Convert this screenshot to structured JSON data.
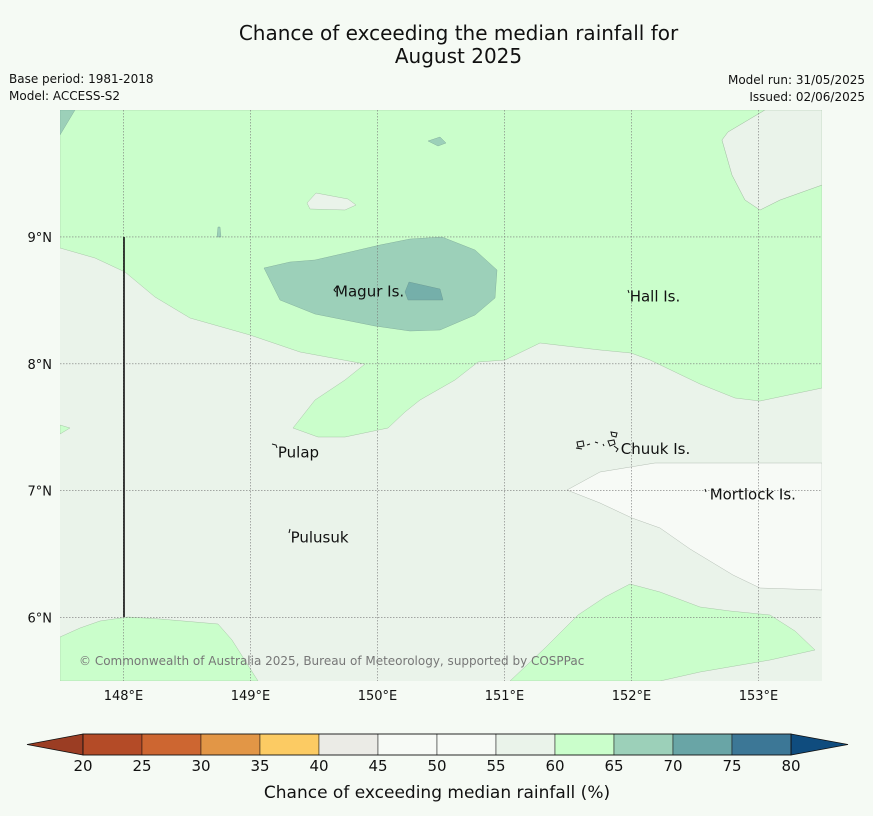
{
  "title": {
    "line1": "Chance of exceeding the median rainfall for",
    "line2": "August 2025"
  },
  "meta": {
    "base_period": "Base period: 1981-2018",
    "model": "Model: ACCESS-S2",
    "model_run": "Model run: 31/05/2025",
    "issued": "Issued: 02/06/2025"
  },
  "map": {
    "lon_range": [
      147.5,
      153.5
    ],
    "lat_range": [
      5.5,
      10.0
    ],
    "lon_ticks": [
      148,
      149,
      150,
      151,
      152,
      153
    ],
    "lon_tick_labels": [
      "148°E",
      "149°E",
      "150°E",
      "151°E",
      "152°E",
      "153°E"
    ],
    "lat_ticks": [
      9,
      8,
      7,
      6
    ],
    "lat_tick_labels": [
      "9°N",
      "8°N",
      "7°N",
      "6°N"
    ],
    "places": [
      {
        "name": "Magur Is.",
        "lon": 149.65,
        "lat": 8.57
      },
      {
        "name": "Hall Is.",
        "lon": 151.97,
        "lat": 8.53
      },
      {
        "name": "Pulap",
        "lon": 149.2,
        "lat": 7.3
      },
      {
        "name": "Chuuk Is.",
        "lon": 151.9,
        "lat": 7.33
      },
      {
        "name": "Mortlock Is.",
        "lon": 152.6,
        "lat": 6.97
      },
      {
        "name": "Pulusuk",
        "lon": 149.3,
        "lat": 6.63
      }
    ],
    "credit": "© Commonwealth of Australia 2025, Bureau of Meteorology, supported by COSPPac"
  },
  "legend": {
    "label": "Chance of exceeding median rainfall (%)",
    "ticks": [
      "20",
      "25",
      "30",
      "35",
      "40",
      "45",
      "50",
      "55",
      "60",
      "65",
      "70",
      "75",
      "80"
    ],
    "colors": [
      "#b44b27",
      "#cd6631",
      "#e29646",
      "#fccb63",
      "#ebebe6",
      "#f7faf6",
      "#f7faf6",
      "#eaf3ea",
      "#cafecb",
      "#9cd0b9",
      "#69a5a6",
      "#3c7796"
    ],
    "under_color": "#9b3d23",
    "over_color": "#0f4c7e"
  },
  "colors": {
    "band_40_45": "#ebebe6",
    "band_45_55": "#f7faf6",
    "band_55_60": "#eaf3ea",
    "band_60_65": "#cafecb",
    "band_65_70": "#9cd0b9",
    "band_70_75": "#69a5a6"
  }
}
